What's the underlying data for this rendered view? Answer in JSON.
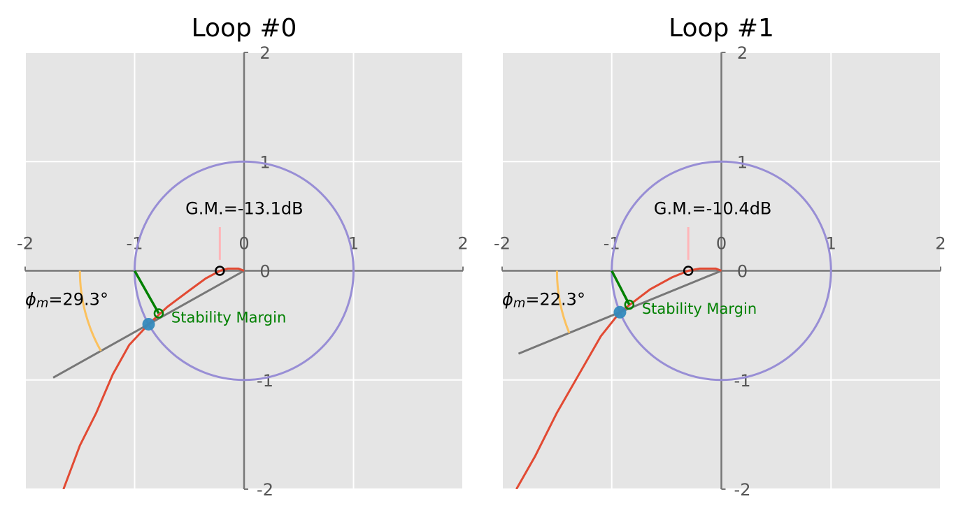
{
  "chart_data": [
    {
      "type": "nyquist",
      "title": "Loop #0",
      "xlim": [
        -2,
        2
      ],
      "ylim": [
        -2,
        2
      ],
      "xticks": [
        -2,
        -1,
        0,
        1,
        2
      ],
      "yticks": [
        -2,
        -1,
        0,
        1,
        2
      ],
      "grid": true,
      "series": [
        {
          "color": "#e24a33",
          "x": [
            0,
            -0.05,
            -0.15,
            -0.22,
            -0.35,
            -0.5,
            -0.7,
            -0.872,
            -1.05,
            -1.2,
            -1.35,
            -1.5,
            -1.65
          ],
          "values": [
            0,
            0.02,
            0.02,
            0,
            -0.07,
            -0.18,
            -0.33,
            -0.489,
            -0.68,
            -0.95,
            -1.3,
            -1.6,
            -2
          ]
        }
      ],
      "gain_margin": -13.1,
      "phase_margin": 29.3,
      "stability_margin": {
        "color": "green",
        "x": [
          -1,
          -0.78
        ],
        "values": [
          0,
          -0.39
        ]
      },
      "annotations": {
        "gain_margin": "G.M.=-13.1dB",
        "phase_margin": {
          "symbol": "ϕ",
          "subscript": "m",
          "text": "=29.3°"
        },
        "stability_margin": "Stability Margin"
      }
    },
    {
      "type": "nyquist",
      "title": "Loop #1",
      "xlim": [
        -2,
        2
      ],
      "ylim": [
        -2,
        2
      ],
      "xticks": [
        -2,
        -1,
        0,
        1,
        2
      ],
      "yticks": [
        -2,
        -1,
        0,
        1,
        2
      ],
      "grid": true,
      "series": [
        {
          "color": "#e24a33",
          "x": [
            0,
            -0.05,
            -0.2,
            -0.302,
            -0.45,
            -0.65,
            -0.925,
            -1.1,
            -1.3,
            -1.5,
            -1.7,
            -1.87
          ],
          "values": [
            0,
            0.02,
            0.02,
            0,
            -0.06,
            -0.17,
            -0.379,
            -0.6,
            -0.95,
            -1.3,
            -1.7,
            -2
          ]
        }
      ],
      "gain_margin": -10.4,
      "phase_margin": 22.3,
      "stability_margin": {
        "color": "green",
        "x": [
          -1,
          -0.84
        ],
        "values": [
          0,
          -0.31
        ]
      },
      "annotations": {
        "gain_margin": "G.M.=-10.4dB",
        "phase_margin": {
          "symbol": "ϕ",
          "subscript": "m",
          "text": "=22.3°"
        },
        "stability_margin": "Stability Margin"
      }
    }
  ]
}
